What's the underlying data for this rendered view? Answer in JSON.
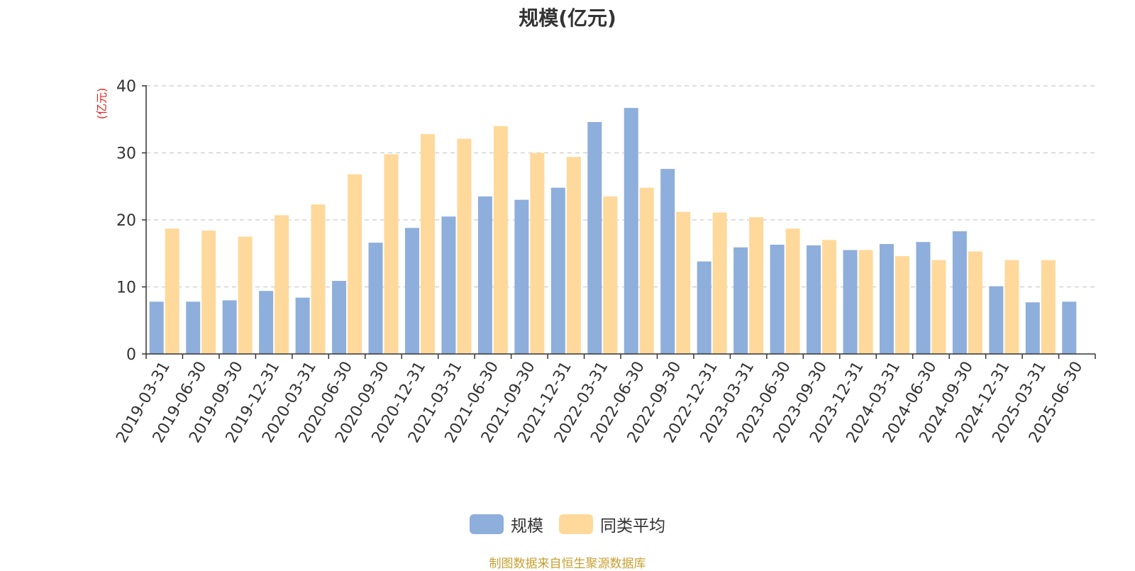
{
  "chart_data": {
    "type": "bar",
    "title": "规模(亿元)",
    "ylabel": "(亿元)",
    "xlabel": "",
    "ylim": [
      0,
      40
    ],
    "yticks": [
      0,
      10,
      20,
      30,
      40
    ],
    "grid": true,
    "legend_position": "bottom",
    "categories": [
      "2019-03-31",
      "2019-06-30",
      "2019-09-30",
      "2019-12-31",
      "2020-03-31",
      "2020-06-30",
      "2020-09-30",
      "2020-12-31",
      "2021-03-31",
      "2021-06-30",
      "2021-09-30",
      "2021-12-31",
      "2022-03-31",
      "2022-06-30",
      "2022-09-30",
      "2022-12-31",
      "2023-03-31",
      "2023-06-30",
      "2023-09-30",
      "2023-12-31",
      "2024-03-31",
      "2024-06-30",
      "2024-09-30",
      "2024-12-31",
      "2025-03-31",
      "2025-06-30"
    ],
    "series": [
      {
        "name": "规模",
        "color": "#8eaedb",
        "values": [
          7.8,
          7.8,
          8.0,
          9.4,
          8.4,
          10.9,
          16.6,
          18.8,
          20.5,
          23.5,
          23.0,
          24.8,
          34.6,
          36.7,
          27.6,
          13.8,
          15.9,
          16.3,
          16.2,
          15.5,
          16.4,
          16.7,
          18.3,
          10.1,
          7.7,
          7.8
        ]
      },
      {
        "name": "同类平均",
        "color": "#ffd99b",
        "values": [
          18.7,
          18.4,
          17.5,
          20.7,
          22.3,
          26.8,
          29.8,
          32.8,
          32.1,
          34.0,
          30.0,
          29.4,
          23.5,
          24.8,
          21.2,
          21.1,
          20.4,
          18.7,
          17.0,
          15.5,
          14.6,
          14.0,
          15.3,
          14.0,
          14.0,
          null
        ]
      }
    ]
  },
  "source_note": "制图数据来自恒生聚源数据库",
  "colors": {
    "axis_label_red": "#e8251c",
    "text": "#333333",
    "grid": "#cccccc"
  }
}
